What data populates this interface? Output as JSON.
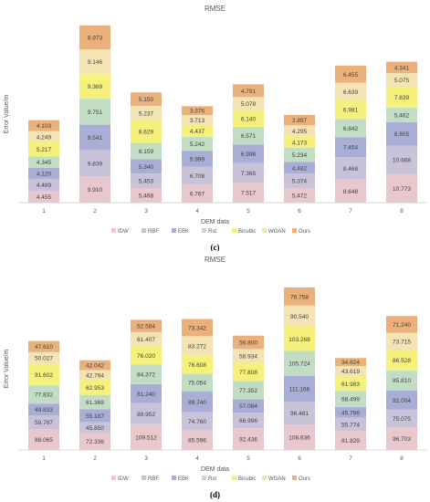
{
  "chart_data": [
    {
      "type": "bar",
      "stacked": true,
      "title": "RMSE",
      "xlabel": "DEM data",
      "ylabel": "Error Value/m",
      "panel_label": "(c)",
      "categories": [
        "1",
        "2",
        "3",
        "4",
        "5",
        "6",
        "7",
        "8"
      ],
      "series": [
        {
          "name": "IDW",
          "color": "#e8c8cc",
          "values": [
            4.455,
            9.91,
            5.468,
            6.767,
            7.517,
            5.472,
            8.648,
            10.773
          ]
        },
        {
          "name": "RBF",
          "color": "#c9c3d9",
          "values": [
            4.489,
            9.839,
            5.453,
            6.708,
            7.365,
            5.374,
            8.468,
            10.668
          ]
        },
        {
          "name": "EBK",
          "color": "#a9aed6",
          "values": [
            4.12,
            9.541,
            5.34,
            5.999,
            6.998,
            4.482,
            7.454,
            8.805
          ]
        },
        {
          "name": "Rst",
          "color": "#c1ddc3",
          "values": [
            4.345,
            9.751,
            6.159,
            5.242,
            6.571,
            5.234,
            6.842,
            5.462
          ]
        },
        {
          "name": "Bicubic",
          "color": "#f6f17a",
          "values": [
            5.217,
            9.369,
            8.629,
            4.437,
            6.14,
            4.173,
            6.981,
            7.839
          ]
        },
        {
          "name": "WGAN",
          "color": "#f4e4b4",
          "values": [
            4.249,
            9.146,
            5.237,
            3.713,
            5.078,
            4.295,
            6.639,
            5.075
          ]
        },
        {
          "name": "Ours",
          "color": "#eab17c",
          "values": [
            4.103,
            8.973,
            5.15,
            3.376,
            4.791,
            3.897,
            6.455,
            4.341
          ]
        }
      ]
    },
    {
      "type": "bar",
      "stacked": true,
      "title": "RMSE",
      "xlabel": "DEM data",
      "ylabel": "Error Value/m",
      "panel_label": "(d)",
      "categories": [
        "1",
        "2",
        "3",
        "4",
        "5",
        "6",
        "7",
        "8"
      ],
      "series": [
        {
          "name": "IDW",
          "color": "#e8c8cc",
          "values": [
            88.065,
            72.336,
            109.512,
            85.596,
            92.436,
            108.636,
            81.829,
            96.703
          ]
        },
        {
          "name": "RBF",
          "color": "#c9c3d9",
          "values": [
            59.787,
            45.85,
            89.952,
            74.76,
            66.996,
            96.481,
            55.774,
            75.075
          ]
        },
        {
          "name": "EBK",
          "color": "#a9aed6",
          "values": [
            49.833,
            55.187,
            81.24,
            89.74,
            57.084,
            111.166,
            45.766,
            82.004
          ]
        },
        {
          "name": "Rst",
          "color": "#c1ddc3",
          "values": [
            77.832,
            61.369,
            84.372,
            75.054,
            77.352,
            105.724,
            68.499,
            85.81
          ]
        },
        {
          "name": "Bicubic",
          "color": "#f6f17a",
          "values": [
            91.602,
            62.953,
            76.02,
            76.608,
            77.808,
            103.268,
            61.983,
            86.528
          ]
        },
        {
          "name": "WGAN",
          "color": "#f4e4b4",
          "values": [
            50.027,
            42.794,
            61.407,
            83.272,
            58.934,
            90.54,
            43.619,
            73.715
          ]
        },
        {
          "name": "Ours",
          "color": "#eab17c",
          "values": [
            47.61,
            42.042,
            52.584,
            73.342,
            56.8,
            76.758,
            34.624,
            71.24
          ]
        }
      ]
    }
  ]
}
